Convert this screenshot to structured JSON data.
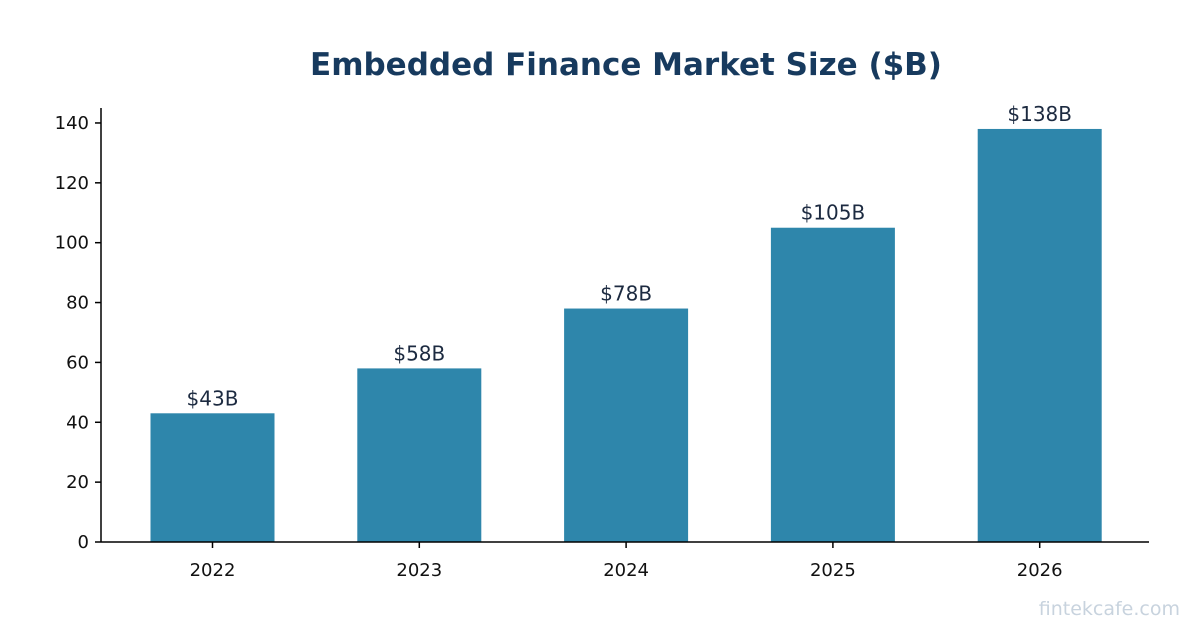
{
  "chart_data": {
    "type": "bar",
    "title": "Embedded Finance Market Size ($B)",
    "xlabel": "",
    "ylabel": "",
    "categories": [
      "2022",
      "2023",
      "2024",
      "2025",
      "2026"
    ],
    "values": [
      43,
      58,
      78,
      105,
      138
    ],
    "data_labels": [
      "$43B",
      "$58B",
      "$78B",
      "$105B",
      "$138B"
    ],
    "ylim": [
      0,
      145
    ],
    "yticks": [
      0,
      20,
      40,
      60,
      80,
      100,
      120,
      140
    ],
    "grid": false,
    "legend": "none"
  },
  "colors": {
    "bar": "#2e86ab",
    "title": "#173a5e",
    "data_label": "#1c2a40",
    "axis": "#000000"
  },
  "watermark": "fintekcafe.com"
}
